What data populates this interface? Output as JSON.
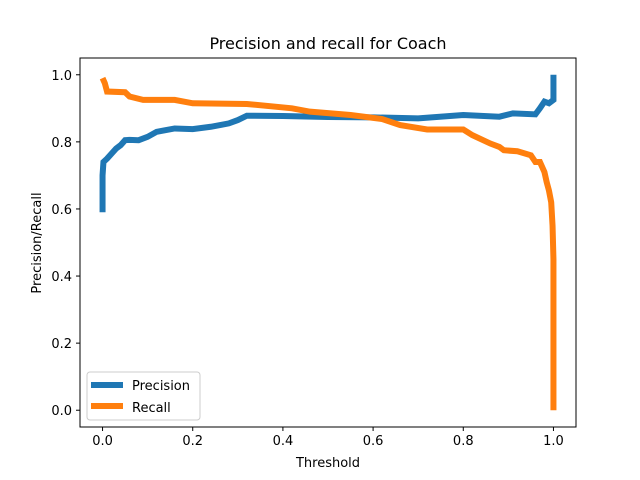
{
  "chart_data": {
    "type": "line",
    "title": "Precision and recall for Coach",
    "xlabel": "Threshold",
    "ylabel": "Precision/Recall",
    "xlim": [
      -0.05,
      1.05
    ],
    "ylim": [
      -0.05,
      1.05
    ],
    "xticks": [
      "0.0",
      "0.2",
      "0.4",
      "0.6",
      "0.8",
      "1.0"
    ],
    "yticks": [
      "0.0",
      "0.2",
      "0.4",
      "0.6",
      "0.8",
      "1.0"
    ],
    "grid": false,
    "legend_position": "lower-left",
    "series": [
      {
        "name": "Precision",
        "color": "#1f77b4",
        "points": [
          [
            0.0,
            0.59
          ],
          [
            0.0,
            0.7
          ],
          [
            0.002,
            0.74
          ],
          [
            0.01,
            0.75
          ],
          [
            0.02,
            0.765
          ],
          [
            0.03,
            0.78
          ],
          [
            0.04,
            0.79
          ],
          [
            0.05,
            0.805
          ],
          [
            0.06,
            0.806
          ],
          [
            0.08,
            0.805
          ],
          [
            0.1,
            0.815
          ],
          [
            0.12,
            0.83
          ],
          [
            0.16,
            0.84
          ],
          [
            0.2,
            0.838
          ],
          [
            0.24,
            0.845
          ],
          [
            0.28,
            0.855
          ],
          [
            0.3,
            0.865
          ],
          [
            0.32,
            0.878
          ],
          [
            0.4,
            0.877
          ],
          [
            0.5,
            0.874
          ],
          [
            0.6,
            0.873
          ],
          [
            0.7,
            0.87
          ],
          [
            0.8,
            0.88
          ],
          [
            0.88,
            0.875
          ],
          [
            0.91,
            0.885
          ],
          [
            0.96,
            0.882
          ],
          [
            0.97,
            0.9
          ],
          [
            0.98,
            0.92
          ],
          [
            0.99,
            0.915
          ],
          [
            1.0,
            0.925
          ],
          [
            1.0,
            1.0
          ]
        ]
      },
      {
        "name": "Recall",
        "color": "#ff7f0e",
        "points": [
          [
            0.0,
            0.99
          ],
          [
            0.005,
            0.975
          ],
          [
            0.01,
            0.95
          ],
          [
            0.05,
            0.948
          ],
          [
            0.06,
            0.935
          ],
          [
            0.09,
            0.925
          ],
          [
            0.16,
            0.925
          ],
          [
            0.2,
            0.915
          ],
          [
            0.32,
            0.913
          ],
          [
            0.42,
            0.9
          ],
          [
            0.46,
            0.89
          ],
          [
            0.55,
            0.88
          ],
          [
            0.62,
            0.868
          ],
          [
            0.66,
            0.85
          ],
          [
            0.72,
            0.837
          ],
          [
            0.8,
            0.837
          ],
          [
            0.82,
            0.82
          ],
          [
            0.86,
            0.795
          ],
          [
            0.88,
            0.785
          ],
          [
            0.89,
            0.775
          ],
          [
            0.92,
            0.772
          ],
          [
            0.95,
            0.76
          ],
          [
            0.96,
            0.74
          ],
          [
            0.97,
            0.74
          ],
          [
            0.98,
            0.71
          ],
          [
            0.985,
            0.68
          ],
          [
            0.99,
            0.655
          ],
          [
            0.995,
            0.62
          ],
          [
            0.998,
            0.55
          ],
          [
            1.0,
            0.45
          ],
          [
            1.0,
            0.0
          ]
        ]
      }
    ]
  }
}
